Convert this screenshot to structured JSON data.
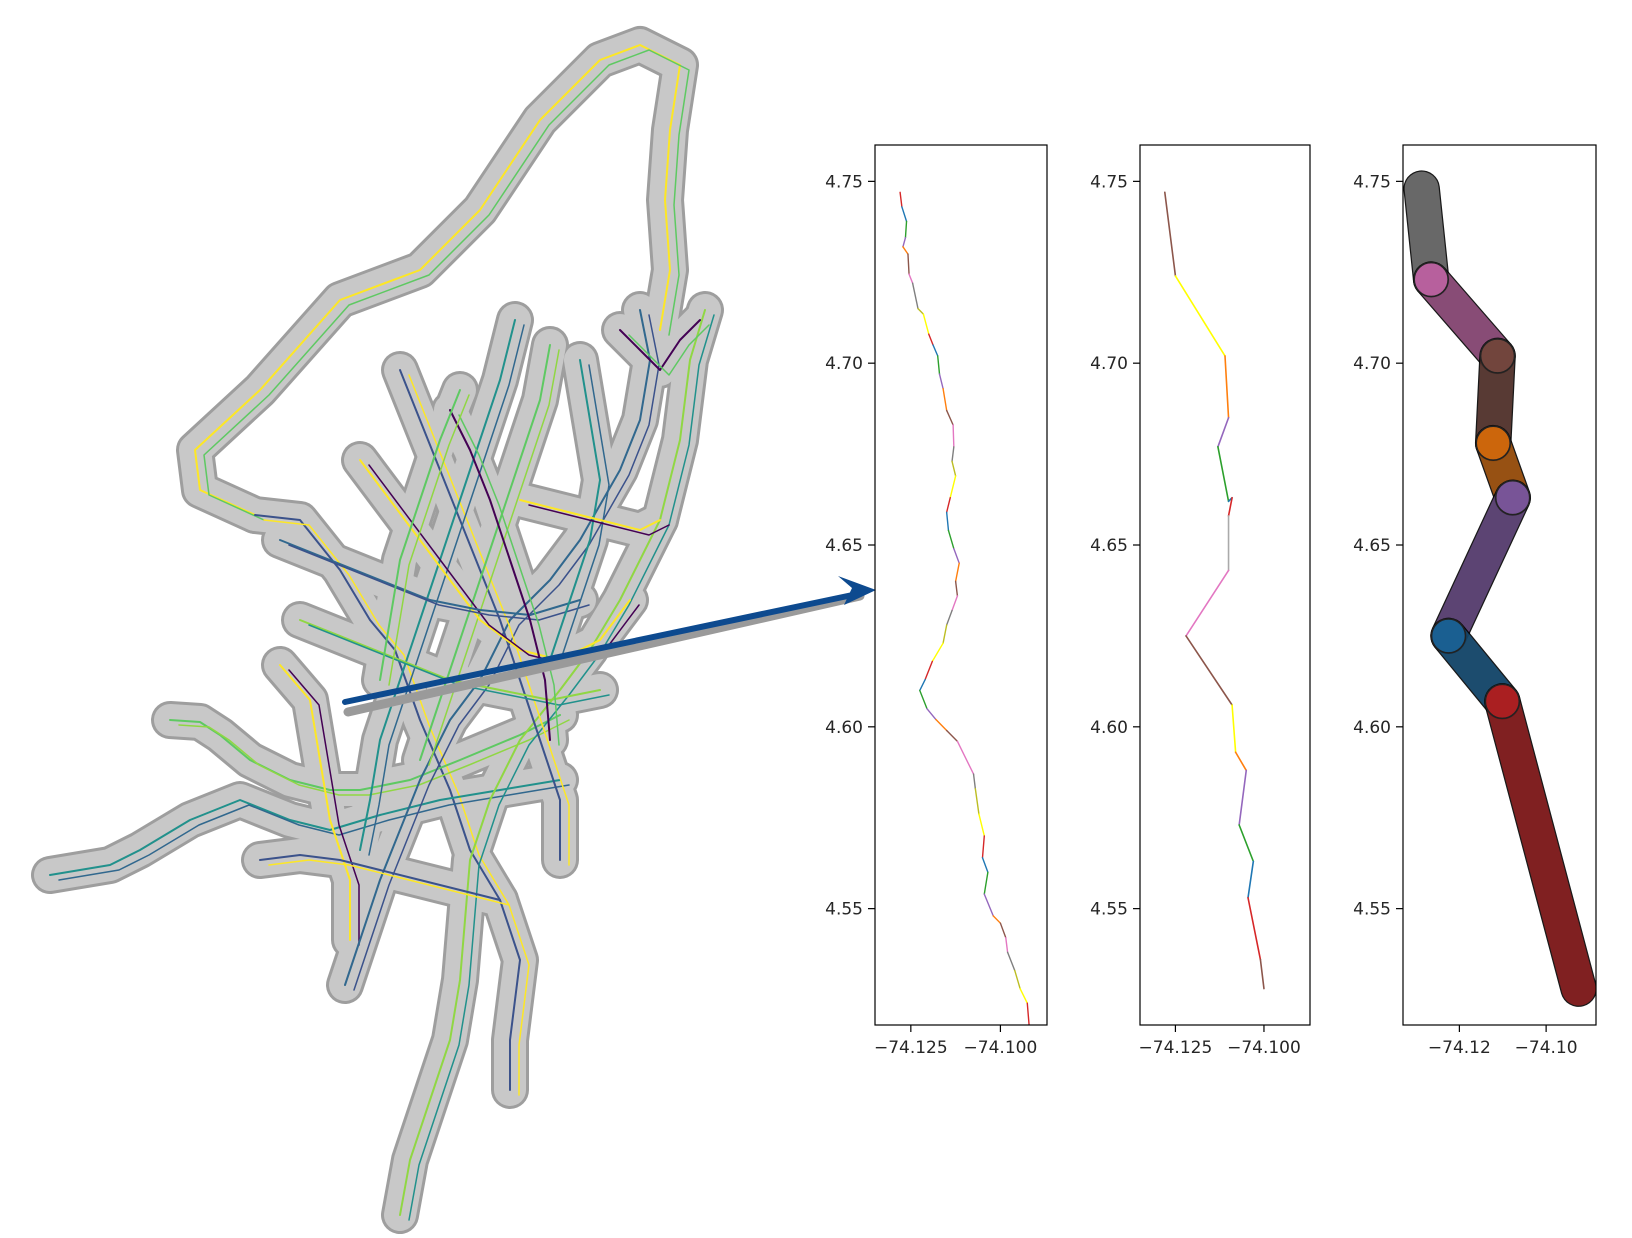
{
  "figure": {
    "network_colors": [
      "#440154",
      "#3b528b",
      "#21918c",
      "#5ec962",
      "#fde725",
      "#31688e",
      "#90d743"
    ],
    "buffer_color": "#c8c8c8",
    "arrow_color": "#0d4a8f"
  },
  "chart_data": [
    {
      "type": "line",
      "title": "",
      "xlabel": "",
      "ylabel": "",
      "xlim": [
        -74.135,
        -74.087
      ],
      "ylim": [
        4.518,
        4.76
      ],
      "xticks": [
        -74.125,
        -74.1
      ],
      "xtick_labels": [
        "−74.125",
        "−74.100"
      ],
      "yticks": [
        4.55,
        4.6,
        4.65,
        4.7,
        4.75
      ],
      "ytick_labels": [
        "4.55",
        "4.60",
        "4.65",
        "4.70",
        "4.75"
      ],
      "colors": [
        "#d62728",
        "#1f77b4",
        "#2ca02c",
        "#9467bd",
        "#ff7f0e",
        "#8c564b",
        "#e377c2",
        "#7f7f7f",
        "#bcbd22",
        "#ffff00"
      ],
      "x": [
        -74.128,
        -74.1275,
        -74.1262,
        -74.1265,
        -74.1272,
        -74.1258,
        -74.1255,
        -74.1245,
        -74.123,
        -74.1215,
        -74.12,
        -74.1188,
        -74.1175,
        -74.117,
        -74.116,
        -74.115,
        -74.1132,
        -74.113,
        -74.1135,
        -74.1125,
        -74.114,
        -74.115,
        -74.1145,
        -74.113,
        -74.1115,
        -74.1125,
        -74.112,
        -74.1135,
        -74.115,
        -74.116,
        -74.119,
        -74.121,
        -74.1225,
        -74.1205,
        -74.118,
        -74.115,
        -74.112,
        -74.1075,
        -74.107,
        -74.106,
        -74.1045,
        -74.105,
        -74.1035,
        -74.1045,
        -74.102,
        -74.1,
        -74.0985,
        -74.098,
        -74.096,
        -74.0945,
        -74.0925,
        -74.092,
        -74.09,
        -74.0895,
        -74.0915
      ],
      "y": [
        4.747,
        4.743,
        4.739,
        4.7345,
        4.732,
        4.73,
        4.7245,
        4.722,
        4.715,
        4.7135,
        4.708,
        4.705,
        4.702,
        4.697,
        4.693,
        4.687,
        4.683,
        4.677,
        4.673,
        4.669,
        4.663,
        4.659,
        4.654,
        4.649,
        4.645,
        4.64,
        4.636,
        4.632,
        4.628,
        4.623,
        4.618,
        4.613,
        4.61,
        4.605,
        4.602,
        4.599,
        4.596,
        4.587,
        4.583,
        4.576,
        4.57,
        4.564,
        4.56,
        4.554,
        4.548,
        4.546,
        4.542,
        4.538,
        4.533,
        4.528,
        4.524,
        4.518,
        4.515,
        4.513,
        4.513
      ]
    },
    {
      "type": "line",
      "title": "",
      "xlabel": "",
      "ylabel": "",
      "xlim": [
        -74.135,
        -74.087
      ],
      "ylim": [
        4.518,
        4.76
      ],
      "xticks": [
        -74.125,
        -74.1
      ],
      "xtick_labels": [
        "−74.125",
        "−74.100"
      ],
      "yticks": [
        4.55,
        4.6,
        4.65,
        4.7,
        4.75
      ],
      "ytick_labels": [
        "4.55",
        "4.60",
        "4.65",
        "4.70",
        "4.75"
      ],
      "colors": [
        "#8c564b",
        "#ffff00",
        "#ff7f0e",
        "#9467bd",
        "#2ca02c",
        "#1f77b4",
        "#d62728",
        "#aaaaaa",
        "#e377c2",
        "#8c564b",
        "#ffff00",
        "#ff7f0e",
        "#9467bd",
        "#2ca02c",
        "#1f77b4",
        "#d62728"
      ],
      "x": [
        -74.128,
        -74.125,
        -74.111,
        -74.11,
        -74.113,
        -74.11,
        -74.109,
        -74.11,
        -74.11,
        -74.122,
        -74.109,
        -74.108,
        -74.105,
        -74.107,
        -74.103,
        -74.1045,
        -74.101,
        -74.1
      ],
      "y": [
        4.747,
        4.724,
        4.702,
        4.685,
        4.677,
        4.662,
        4.663,
        4.658,
        4.643,
        4.625,
        4.606,
        4.593,
        4.588,
        4.573,
        4.563,
        4.553,
        4.536,
        4.528
      ]
    },
    {
      "type": "line",
      "title": "",
      "xlabel": "",
      "ylabel": "",
      "xlim": [
        -74.133,
        -74.0885
      ],
      "ylim": [
        4.518,
        4.76
      ],
      "xticks": [
        -74.12,
        -74.1
      ],
      "xtick_labels": [
        "−74.12",
        "−74.10"
      ],
      "yticks": [
        4.55,
        4.6,
        4.65,
        4.7,
        4.75
      ],
      "ytick_labels": [
        "4.55",
        "4.60",
        "4.65",
        "4.70",
        "4.75"
      ],
      "colors": [
        "#aaaaaa",
        "#e377c2",
        "#8c564b",
        "#ff7f0e",
        "#9467bd",
        "#1f77b4",
        "#d62728"
      ],
      "x": [
        -74.1287,
        -74.1265,
        -74.1112,
        -74.1122,
        -74.1077,
        -74.1225,
        -74.1101,
        -74.0925
      ],
      "y": [
        4.748,
        4.723,
        4.702,
        4.678,
        4.663,
        4.625,
        4.607,
        4.528
      ]
    }
  ]
}
